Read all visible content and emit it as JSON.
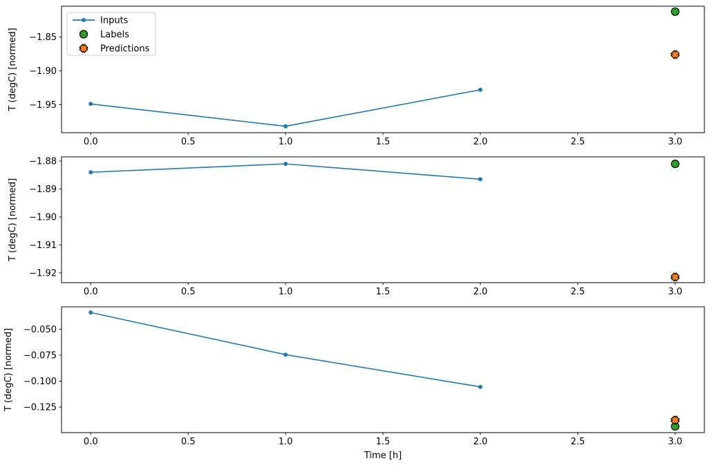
{
  "figure": {
    "background": "#ffffff"
  },
  "colors": {
    "inputs": "#1f77b4",
    "labels": "#2ca02c",
    "predictions": "#ff7f0e",
    "marker_edge": "#000000",
    "axis": "#000000",
    "legend_border": "#cccccc"
  },
  "legend": {
    "items": [
      {
        "label": "Inputs",
        "type": "line-dot",
        "color": "#1f77b4"
      },
      {
        "label": "Labels",
        "type": "circle",
        "color": "#2ca02c"
      },
      {
        "label": "Predictions",
        "type": "x",
        "color": "#ff7f0e"
      }
    ]
  },
  "chart_data": [
    {
      "type": "line",
      "ylabel": "T (degC) [normed]",
      "xlabel": "",
      "xlim": [
        -0.15,
        3.15
      ],
      "ylim": [
        -1.9915,
        -1.8045
      ],
      "xticks": {
        "values": [
          0,
          0.5,
          1,
          1.5,
          2,
          2.5,
          3
        ],
        "labels": [
          "0.0",
          "0.5",
          "1.0",
          "1.5",
          "2.0",
          "2.5",
          "3.0"
        ]
      },
      "yticks": {
        "values": [
          -1.85,
          -1.9,
          -1.95
        ],
        "labels": [
          "−1.85",
          "−1.90",
          "−1.95"
        ]
      },
      "series": [
        {
          "name": "Inputs",
          "type": "line",
          "x": [
            0,
            1,
            2
          ],
          "y": [
            -1.949,
            -1.982,
            -1.928
          ]
        },
        {
          "name": "Labels",
          "type": "scatter-circle",
          "x": [
            3
          ],
          "y": [
            -1.8125
          ]
        },
        {
          "name": "Predictions",
          "type": "scatter-x",
          "x": [
            3
          ],
          "y": [
            -1.876
          ]
        }
      ]
    },
    {
      "type": "line",
      "ylabel": "T (degC) [normed]",
      "xlabel": "",
      "xlim": [
        -0.15,
        3.15
      ],
      "ylim": [
        -1.9235,
        -1.8785
      ],
      "xticks": {
        "values": [
          0,
          0.5,
          1,
          1.5,
          2,
          2.5,
          3
        ],
        "labels": [
          "0.0",
          "0.5",
          "1.0",
          "1.5",
          "2.0",
          "2.5",
          "3.0"
        ]
      },
      "yticks": {
        "values": [
          -1.88,
          -1.89,
          -1.9,
          -1.91,
          -1.92
        ],
        "labels": [
          "−1.88",
          "−1.89",
          "−1.90",
          "−1.91",
          "−1.92"
        ]
      },
      "series": [
        {
          "name": "Inputs",
          "type": "line",
          "x": [
            0,
            1,
            2
          ],
          "y": [
            -1.884,
            -1.881,
            -1.8865
          ]
        },
        {
          "name": "Labels",
          "type": "scatter-circle",
          "x": [
            3
          ],
          "y": [
            -1.881
          ]
        },
        {
          "name": "Predictions",
          "type": "scatter-x",
          "x": [
            3
          ],
          "y": [
            -1.9215
          ]
        }
      ]
    },
    {
      "type": "line",
      "ylabel": "T (degC) [normed]",
      "xlabel": "Time [h]",
      "xlim": [
        -0.15,
        3.15
      ],
      "ylim": [
        -0.1495,
        -0.0285
      ],
      "xticks": {
        "values": [
          0,
          0.5,
          1,
          1.5,
          2,
          2.5,
          3
        ],
        "labels": [
          "0.0",
          "0.5",
          "1.0",
          "1.5",
          "2.0",
          "2.5",
          "3.0"
        ]
      },
      "yticks": {
        "values": [
          -0.05,
          -0.075,
          -0.1,
          -0.125
        ],
        "labels": [
          "−0.050",
          "−0.075",
          "−0.100",
          "−0.125"
        ]
      },
      "series": [
        {
          "name": "Inputs",
          "type": "line",
          "x": [
            0,
            1,
            2
          ],
          "y": [
            -0.034,
            -0.0745,
            -0.1055
          ]
        },
        {
          "name": "Labels",
          "type": "scatter-circle",
          "x": [
            3
          ],
          "y": [
            -0.1435
          ]
        },
        {
          "name": "Predictions",
          "type": "scatter-x",
          "x": [
            3
          ],
          "y": [
            -0.1375
          ]
        }
      ]
    }
  ]
}
